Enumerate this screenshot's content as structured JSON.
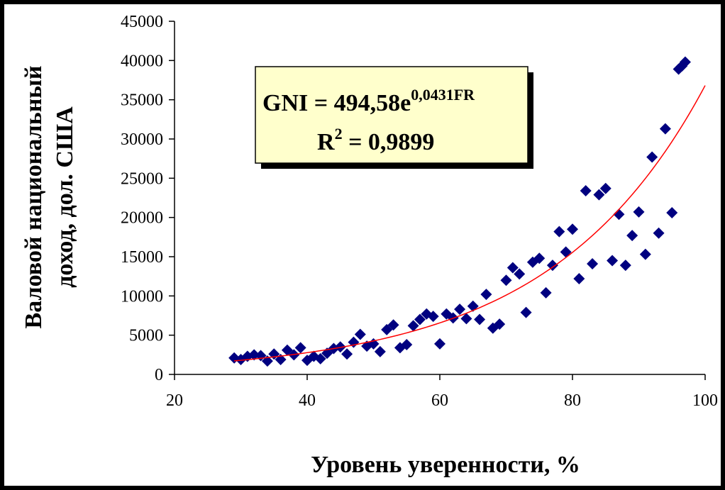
{
  "chart_data": {
    "type": "scatter",
    "xlabel": "Уровень уверенности, %",
    "ylabel_line1": "Валовой национальный",
    "ylabel_line2": "доход, дол. США",
    "xlim": [
      20,
      100
    ],
    "ylim": [
      0,
      45000
    ],
    "x_ticks": [
      "20",
      "40",
      "60",
      "80",
      "100"
    ],
    "y_ticks": [
      "0",
      "5000",
      "10000",
      "15000",
      "20000",
      "25000",
      "30000",
      "35000",
      "40000",
      "45000"
    ],
    "grid": false,
    "marker_color": "#000080",
    "trendline_color": "#ff0000",
    "trendline": {
      "type": "exponential",
      "a": 494.58,
      "b": 0.0431,
      "x_range": [
        29,
        100
      ]
    },
    "annotation": {
      "eq_prefix": "GNI = 494,58e",
      "eq_exponent": "0,0431FR",
      "r2_prefix": "R",
      "r2_sup": "2",
      "r2_suffix": " = 0,9899",
      "box_color": "#ffffcc"
    },
    "points": [
      {
        "x": 29,
        "y": 2100
      },
      {
        "x": 30,
        "y": 1900
      },
      {
        "x": 31,
        "y": 2300
      },
      {
        "x": 32,
        "y": 2500
      },
      {
        "x": 33,
        "y": 2400
      },
      {
        "x": 34,
        "y": 1700
      },
      {
        "x": 35,
        "y": 2600
      },
      {
        "x": 36,
        "y": 1900
      },
      {
        "x": 37,
        "y": 3100
      },
      {
        "x": 38,
        "y": 2500
      },
      {
        "x": 39,
        "y": 3400
      },
      {
        "x": 40,
        "y": 1800
      },
      {
        "x": 41,
        "y": 2300
      },
      {
        "x": 42,
        "y": 2000
      },
      {
        "x": 43,
        "y": 2700
      },
      {
        "x": 44,
        "y": 3300
      },
      {
        "x": 45,
        "y": 3500
      },
      {
        "x": 46,
        "y": 2600
      },
      {
        "x": 47,
        "y": 4100
      },
      {
        "x": 48,
        "y": 5100
      },
      {
        "x": 49,
        "y": 3600
      },
      {
        "x": 50,
        "y": 3900
      },
      {
        "x": 51,
        "y": 2900
      },
      {
        "x": 52,
        "y": 5700
      },
      {
        "x": 53,
        "y": 6300
      },
      {
        "x": 54,
        "y": 3400
      },
      {
        "x": 55,
        "y": 3800
      },
      {
        "x": 56,
        "y": 6200
      },
      {
        "x": 57,
        "y": 7000
      },
      {
        "x": 58,
        "y": 7700
      },
      {
        "x": 59,
        "y": 7400
      },
      {
        "x": 60,
        "y": 3900
      },
      {
        "x": 61,
        "y": 7700
      },
      {
        "x": 62,
        "y": 7200
      },
      {
        "x": 63,
        "y": 8300
      },
      {
        "x": 64,
        "y": 7100
      },
      {
        "x": 65,
        "y": 8700
      },
      {
        "x": 66,
        "y": 7000
      },
      {
        "x": 67,
        "y": 10200
      },
      {
        "x": 68,
        "y": 5900
      },
      {
        "x": 69,
        "y": 6400
      },
      {
        "x": 70,
        "y": 12000
      },
      {
        "x": 71,
        "y": 13600
      },
      {
        "x": 72,
        "y": 12800
      },
      {
        "x": 73,
        "y": 7900
      },
      {
        "x": 74,
        "y": 14300
      },
      {
        "x": 75,
        "y": 14800
      },
      {
        "x": 76,
        "y": 10400
      },
      {
        "x": 77,
        "y": 13900
      },
      {
        "x": 78,
        "y": 18200
      },
      {
        "x": 79,
        "y": 15600
      },
      {
        "x": 80,
        "y": 18500
      },
      {
        "x": 81,
        "y": 12200
      },
      {
        "x": 82,
        "y": 23400
      },
      {
        "x": 83,
        "y": 14100
      },
      {
        "x": 84,
        "y": 22900
      },
      {
        "x": 85,
        "y": 23700
      },
      {
        "x": 86,
        "y": 14500
      },
      {
        "x": 87,
        "y": 20400
      },
      {
        "x": 88,
        "y": 13900
      },
      {
        "x": 89,
        "y": 17700
      },
      {
        "x": 90,
        "y": 20700
      },
      {
        "x": 91,
        "y": 15300
      },
      {
        "x": 92,
        "y": 27700
      },
      {
        "x": 93,
        "y": 18000
      },
      {
        "x": 94,
        "y": 31300
      },
      {
        "x": 95,
        "y": 20600
      },
      {
        "x": 96,
        "y": 38900
      },
      {
        "x": 96.5,
        "y": 39300
      },
      {
        "x": 97,
        "y": 39800
      }
    ]
  }
}
